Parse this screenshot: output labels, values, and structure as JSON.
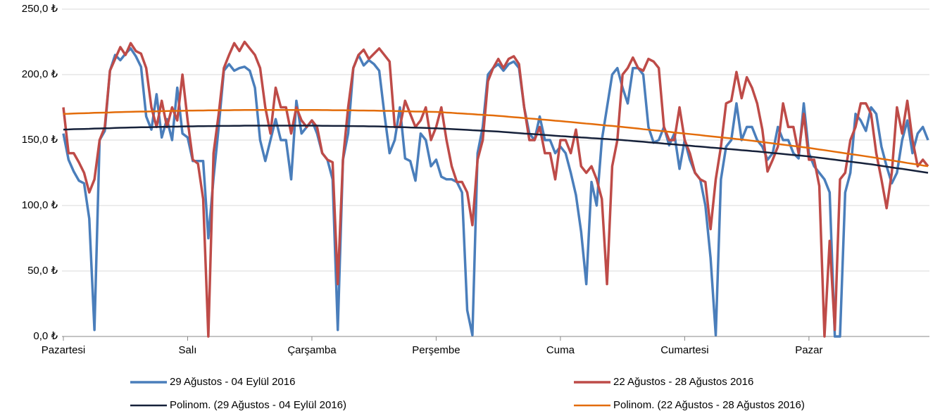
{
  "chart_data": {
    "type": "line",
    "categories": [
      "Pazartesi",
      null,
      null,
      null,
      null,
      null,
      null,
      null,
      null,
      null,
      null,
      null,
      null,
      null,
      null,
      null,
      null,
      null,
      null,
      null,
      null,
      null,
      null,
      null,
      "Salı",
      null,
      null,
      null,
      null,
      null,
      null,
      null,
      null,
      null,
      null,
      null,
      null,
      null,
      null,
      null,
      null,
      null,
      null,
      null,
      null,
      null,
      null,
      null,
      "Çarşamba",
      null,
      null,
      null,
      null,
      null,
      null,
      null,
      null,
      null,
      null,
      null,
      null,
      null,
      null,
      null,
      null,
      null,
      null,
      null,
      null,
      null,
      null,
      null,
      "Perşembe",
      null,
      null,
      null,
      null,
      null,
      null,
      null,
      null,
      null,
      null,
      null,
      null,
      null,
      null,
      null,
      null,
      null,
      null,
      null,
      null,
      null,
      null,
      null,
      "Cuma",
      null,
      null,
      null,
      null,
      null,
      null,
      null,
      null,
      null,
      null,
      null,
      null,
      null,
      null,
      null,
      null,
      null,
      null,
      null,
      null,
      null,
      null,
      null,
      "Cumartesi",
      null,
      null,
      null,
      null,
      null,
      null,
      null,
      null,
      null,
      null,
      null,
      null,
      null,
      null,
      null,
      null,
      null,
      null,
      null,
      null,
      null,
      null,
      null,
      "Pazar",
      null,
      null,
      null,
      null,
      null,
      null,
      null,
      null,
      null,
      null,
      null,
      null,
      null,
      null,
      null,
      null,
      null,
      null,
      null,
      null,
      null,
      null,
      null
    ],
    "series": [
      {
        "name": "29 Ağustos - 04 Eylül 2016",
        "color": "#4a7ebb",
        "width": 3.5,
        "values": [
          155,
          135,
          126,
          119,
          117,
          90,
          5,
          150,
          157,
          203,
          215,
          211,
          216,
          220,
          214,
          206,
          168,
          158,
          185,
          152,
          166,
          150,
          190,
          155,
          152,
          134,
          134,
          134,
          75,
          121,
          160,
          203,
          208,
          203,
          205,
          206,
          203,
          190,
          150,
          134,
          150,
          166,
          150,
          150,
          120,
          180,
          155,
          160,
          165,
          155,
          140,
          135,
          120,
          5,
          135,
          155,
          205,
          215,
          207,
          211,
          208,
          203,
          170,
          140,
          150,
          175,
          136,
          134,
          119,
          155,
          150,
          130,
          135,
          122,
          120,
          120,
          118,
          110,
          20,
          1,
          140,
          160,
          200,
          205,
          208,
          203,
          208,
          210,
          205,
          175,
          155,
          150,
          168,
          150,
          150,
          140,
          145,
          140,
          125,
          108,
          80,
          40,
          118,
          100,
          150,
          175,
          200,
          205,
          190,
          178,
          205,
          205,
          200,
          160,
          148,
          150,
          160,
          146,
          155,
          128,
          150,
          135,
          125,
          120,
          100,
          60,
          1,
          120,
          145,
          150,
          178,
          150,
          160,
          160,
          150,
          145,
          135,
          140,
          160,
          150,
          150,
          140,
          136,
          178,
          140,
          130,
          125,
          120,
          110,
          0,
          0,
          110,
          125,
          170,
          165,
          157,
          175,
          170,
          145,
          130,
          117,
          125,
          150,
          165,
          140,
          155,
          160,
          150
        ]
      },
      {
        "name": "22 Ağustos - 28 Ağustos 2016",
        "color": "#be4b48",
        "width": 3.5,
        "values": [
          175,
          140,
          140,
          133,
          125,
          110,
          120,
          150,
          160,
          203,
          212,
          221,
          215,
          224,
          218,
          216,
          205,
          175,
          160,
          180,
          160,
          175,
          165,
          200,
          165,
          135,
          132,
          105,
          0,
          140,
          170,
          205,
          215,
          224,
          218,
          225,
          220,
          215,
          205,
          175,
          155,
          190,
          175,
          175,
          155,
          175,
          165,
          160,
          165,
          160,
          140,
          135,
          133,
          40,
          135,
          175,
          205,
          215,
          219,
          212,
          216,
          220,
          215,
          210,
          160,
          160,
          180,
          170,
          160,
          165,
          175,
          150,
          160,
          175,
          150,
          130,
          118,
          118,
          110,
          85,
          135,
          150,
          195,
          205,
          212,
          205,
          212,
          214,
          208,
          175,
          150,
          150,
          160,
          140,
          140,
          120,
          150,
          150,
          140,
          158,
          130,
          125,
          130,
          120,
          105,
          40,
          130,
          150,
          200,
          205,
          213,
          205,
          203,
          212,
          210,
          205,
          160,
          150,
          150,
          175,
          150,
          140,
          125,
          120,
          118,
          82,
          120,
          145,
          178,
          180,
          202,
          182,
          198,
          190,
          178,
          158,
          126,
          135,
          145,
          178,
          160,
          160,
          140,
          170,
          135,
          135,
          115,
          0,
          73,
          5,
          120,
          125,
          150,
          160,
          178,
          178,
          170,
          140,
          120,
          98,
          125,
          175,
          155,
          180,
          150,
          130,
          135,
          130
        ]
      },
      {
        "name": "Polinom. (29 Ağustos - 04 Eylül 2016)",
        "color": "#16213a",
        "width": 2.5,
        "values": [
          158,
          158.1,
          158.3,
          158.4,
          158.5,
          158.6,
          158.8,
          158.9,
          159,
          159.1,
          159.3,
          159.4,
          159.5,
          159.6,
          159.7,
          159.8,
          159.8,
          159.9,
          160,
          160.1,
          160.2,
          160.3,
          160.3,
          160.4,
          160.5,
          160.5,
          160.6,
          160.6,
          160.7,
          160.7,
          160.8,
          160.8,
          160.8,
          160.9,
          160.9,
          161,
          161,
          161,
          161,
          161,
          161,
          161,
          161,
          161,
          161,
          161,
          161,
          161,
          161,
          161,
          160.9,
          160.9,
          160.8,
          160.8,
          160.8,
          160.7,
          160.7,
          160.6,
          160.6,
          160.5,
          160.5,
          160.4,
          160.3,
          160.1,
          160,
          159.9,
          159.8,
          159.6,
          159.5,
          159.4,
          159.3,
          159.1,
          159,
          158.8,
          158.6,
          158.4,
          158.2,
          158,
          157.8,
          157.5,
          157.3,
          157.1,
          156.9,
          156.7,
          156.5,
          156.2,
          155.9,
          155.6,
          155.3,
          155,
          154.8,
          154.5,
          154.2,
          153.9,
          153.6,
          153.3,
          153,
          152.8,
          152.5,
          152.3,
          152,
          151.8,
          151.5,
          151.3,
          151,
          150.8,
          150.5,
          150.3,
          150,
          149.7,
          149.3,
          149,
          148.7,
          148.3,
          148,
          147.7,
          147.3,
          147,
          146.7,
          146.3,
          146,
          145.7,
          145.3,
          145,
          144.7,
          144.3,
          144,
          143.7,
          143.3,
          143,
          142.7,
          142.3,
          142,
          141.6,
          141.3,
          140.9,
          140.5,
          140.1,
          139.8,
          139.4,
          139,
          138.6,
          138.3,
          137.9,
          137.5,
          137,
          136.5,
          136,
          135.5,
          135,
          134.5,
          134,
          133.5,
          133,
          132.5,
          132,
          131.5,
          130.9,
          130.3,
          129.7,
          129.1,
          128.5,
          128,
          127.4,
          126.8,
          126.2,
          125.6,
          125
        ]
      },
      {
        "name": "Polinom. (22 Ağustos - 28 Ağustos 2016)",
        "color": "#e36c0a",
        "width": 2.5,
        "values": [
          170,
          170.1,
          170.3,
          170.4,
          170.5,
          170.6,
          170.8,
          170.9,
          171,
          171.1,
          171.3,
          171.4,
          171.5,
          171.6,
          171.7,
          171.8,
          171.8,
          171.9,
          172,
          172.1,
          172.2,
          172.3,
          172.3,
          172.4,
          172.5,
          172.5,
          172.6,
          172.6,
          172.7,
          172.7,
          172.8,
          172.8,
          172.8,
          172.9,
          172.9,
          173,
          173,
          173,
          173,
          173,
          173,
          173,
          173,
          173,
          173,
          173,
          173,
          173,
          173,
          173,
          172.9,
          172.9,
          172.8,
          172.8,
          172.8,
          172.7,
          172.7,
          172.6,
          172.6,
          172.5,
          172.5,
          172.4,
          172.3,
          172.3,
          172.2,
          172.1,
          172,
          171.9,
          171.8,
          171.8,
          171.7,
          171.6,
          171.5,
          171.3,
          171,
          170.8,
          170.5,
          170.3,
          170,
          169.8,
          169.5,
          169.3,
          169,
          168.8,
          168.5,
          168.2,
          167.8,
          167.5,
          167.2,
          166.8,
          166.5,
          166.2,
          165.8,
          165.5,
          165.2,
          164.8,
          164.5,
          164.1,
          163.8,
          163.4,
          163,
          162.6,
          162.3,
          161.9,
          161.5,
          161.1,
          160.8,
          160.4,
          160,
          159.6,
          159.2,
          158.8,
          158.3,
          157.9,
          157.5,
          157.1,
          156.7,
          156.3,
          155.8,
          155.4,
          155,
          154.6,
          154.2,
          153.8,
          153.3,
          152.9,
          152.5,
          152.1,
          151.7,
          151.3,
          150.8,
          150.4,
          150,
          149.5,
          149,
          148.5,
          148,
          147.5,
          147,
          146.5,
          146,
          145.5,
          145,
          144.5,
          144,
          143.4,
          142.8,
          142.3,
          141.7,
          141.1,
          140.5,
          139.9,
          139.3,
          138.8,
          138.2,
          137.6,
          137,
          136.4,
          135.7,
          135.1,
          134.5,
          133.8,
          133.2,
          132.5,
          131.9,
          131.3,
          130.6,
          130
        ]
      }
    ],
    "ylim": [
      0,
      250
    ],
    "yticks": [
      {
        "value": 0,
        "label": "0,0 ₺"
      },
      {
        "value": 50,
        "label": "50,0 ₺"
      },
      {
        "value": 100,
        "label": "100,0 ₺"
      },
      {
        "value": 150,
        "label": "150,0 ₺"
      },
      {
        "value": 200,
        "label": "200,0 ₺"
      },
      {
        "value": 250,
        "label": "250,0 ₺"
      }
    ],
    "grid": true,
    "legend": "bottom"
  }
}
